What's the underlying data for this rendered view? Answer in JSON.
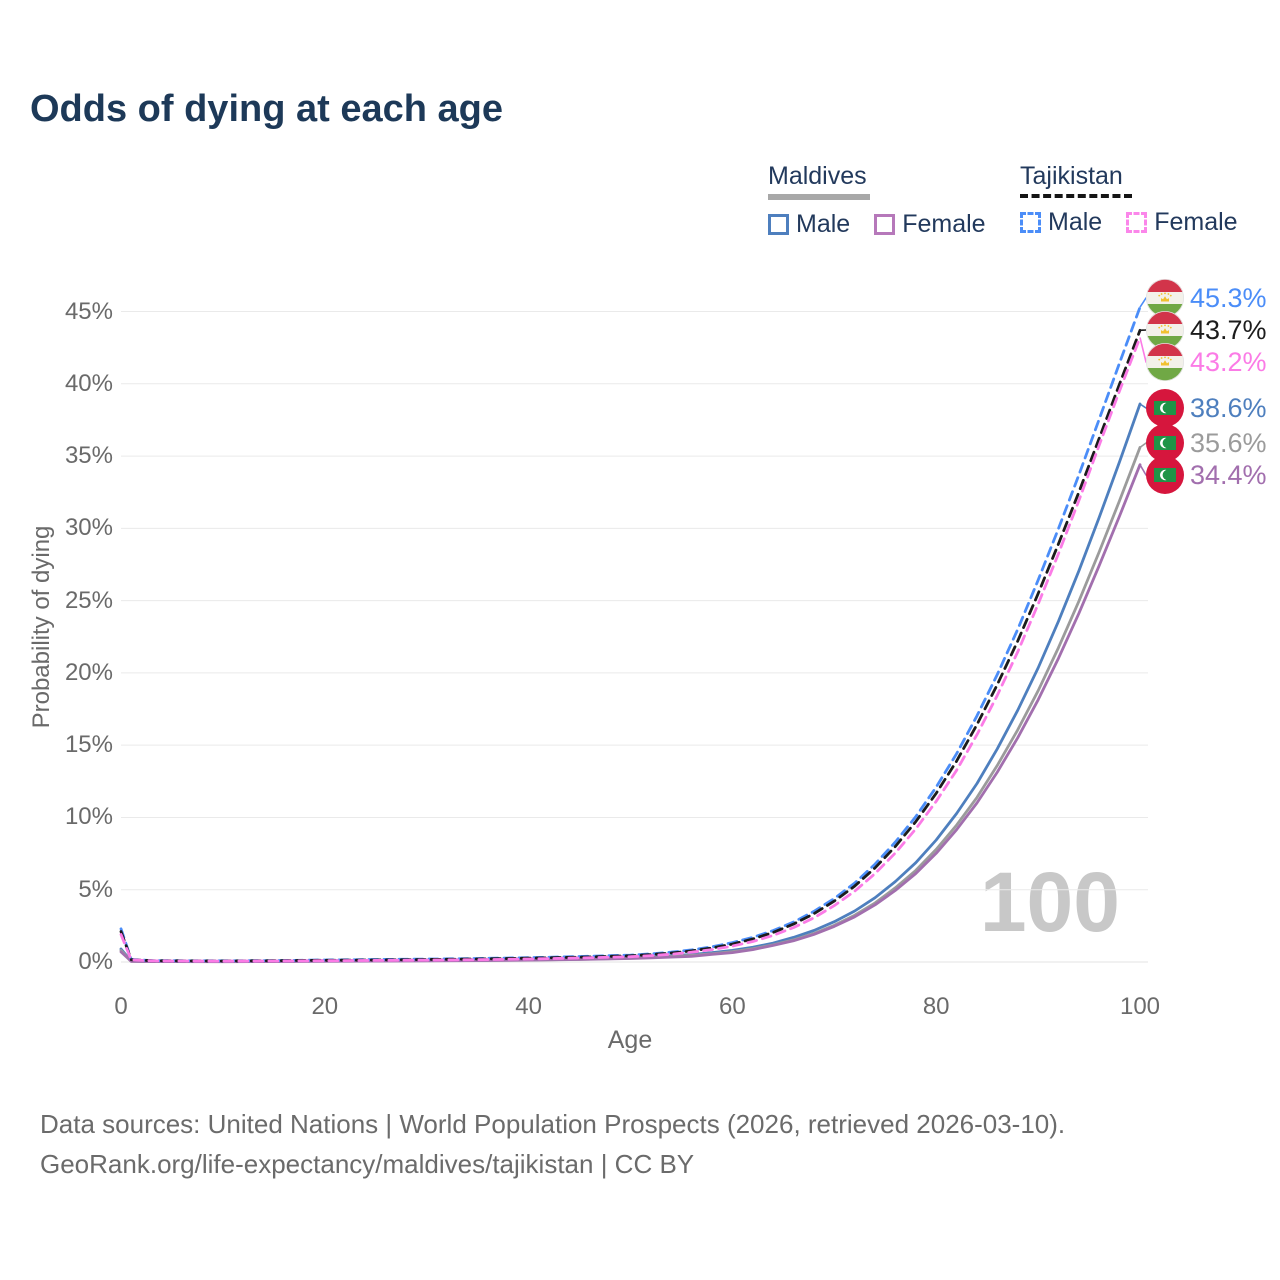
{
  "title": "Odds of dying at each age",
  "legend": {
    "groups": [
      {
        "name": "Maldives",
        "style": "solid",
        "underline_color": "#a8a8a8",
        "items": [
          {
            "label": "Male",
            "color": "#4e7fbe"
          },
          {
            "label": "Female",
            "color": "#b678ba"
          }
        ]
      },
      {
        "name": "Tajikistan",
        "style": "dashed",
        "underline_color": "#151515",
        "items": [
          {
            "label": "Male",
            "color": "#4b8df8"
          },
          {
            "label": "Female",
            "color": "#fb86ea"
          }
        ]
      }
    ]
  },
  "axes": {
    "x_label": "Age",
    "y_label": "Probability of dying",
    "x_ticks": [
      "0",
      "20",
      "40",
      "60",
      "80",
      "100"
    ],
    "y_ticks": [
      "0%",
      "5%",
      "10%",
      "15%",
      "20%",
      "25%",
      "30%",
      "35%",
      "40%",
      "45%"
    ]
  },
  "watermark": "100",
  "footer": {
    "line1": "Data sources: United Nations | World Population Prospects (2026, retrieved 2026-03-10).",
    "line2": "GeoRank.org/life-expectancy/maldives/tajikistan | CC BY"
  },
  "chart_data": {
    "type": "line",
    "title": "Odds of dying at each age",
    "xlabel": "Age",
    "ylabel": "Probability of dying",
    "x_range": [
      0,
      100
    ],
    "y_range_percent": [
      0,
      45
    ],
    "grid": "horizontal",
    "legend_position": "top-right",
    "ages": [
      0,
      1,
      3,
      5,
      10,
      15,
      20,
      25,
      30,
      35,
      40,
      45,
      50,
      52,
      54,
      56,
      58,
      60,
      62,
      64,
      66,
      68,
      70,
      72,
      74,
      76,
      78,
      80,
      82,
      84,
      86,
      88,
      90,
      92,
      94,
      96,
      98,
      100
    ],
    "series": [
      {
        "name": "Tajikistan Male",
        "country": "Tajikistan",
        "sex": "Male",
        "color": "#4b8df8",
        "dashed": true,
        "end_label": "45.3%",
        "end_value_percent": 45.3,
        "values": [
          2.3,
          0.18,
          0.1,
          0.09,
          0.08,
          0.1,
          0.14,
          0.17,
          0.2,
          0.24,
          0.3,
          0.38,
          0.48,
          0.56,
          0.68,
          0.84,
          1.05,
          1.34,
          1.7,
          2.17,
          2.76,
          3.5,
          4.39,
          5.46,
          6.77,
          8.3,
          10.06,
          12.1,
          14.41,
          17.03,
          19.89,
          23.01,
          26.41,
          29.99,
          33.7,
          37.55,
          41.45,
          45.3
        ]
      },
      {
        "name": "Tajikistan Both sexes",
        "country": "Tajikistan",
        "sex": "Both",
        "color": "#1c1c1c",
        "dashed": true,
        "end_label": "43.7%",
        "end_value_percent": 43.7,
        "values": [
          2.1,
          0.16,
          0.09,
          0.08,
          0.07,
          0.09,
          0.12,
          0.14,
          0.17,
          0.21,
          0.26,
          0.33,
          0.43,
          0.51,
          0.62,
          0.77,
          0.97,
          1.24,
          1.59,
          2.05,
          2.62,
          3.34,
          4.21,
          5.25,
          6.52,
          8.0,
          9.71,
          11.67,
          13.9,
          16.43,
          19.19,
          22.2,
          25.48,
          28.93,
          32.51,
          36.23,
          39.99,
          43.7
        ]
      },
      {
        "name": "Tajikistan Female",
        "country": "Tajikistan",
        "sex": "Female",
        "color": "#fb7be6",
        "dashed": true,
        "end_label": "43.2%",
        "end_value_percent": 43.2,
        "values": [
          1.9,
          0.15,
          0.08,
          0.07,
          0.06,
          0.07,
          0.09,
          0.11,
          0.13,
          0.16,
          0.21,
          0.28,
          0.37,
          0.44,
          0.54,
          0.68,
          0.86,
          1.1,
          1.42,
          1.84,
          2.38,
          3.06,
          3.9,
          4.9,
          6.12,
          7.55,
          9.21,
          11.12,
          13.26,
          15.73,
          18.45,
          21.45,
          24.75,
          28.25,
          31.93,
          35.75,
          39.52,
          43.2
        ]
      },
      {
        "name": "Maldives Male",
        "country": "Maldives",
        "sex": "Male",
        "color": "#4e7fbe",
        "dashed": false,
        "end_label": "38.6%",
        "end_value_percent": 38.6,
        "values": [
          0.9,
          0.06,
          0.04,
          0.03,
          0.03,
          0.05,
          0.08,
          0.09,
          0.11,
          0.13,
          0.17,
          0.22,
          0.3,
          0.35,
          0.43,
          0.52,
          0.64,
          0.8,
          1.02,
          1.31,
          1.7,
          2.18,
          2.79,
          3.53,
          4.45,
          5.57,
          6.87,
          8.44,
          10.27,
          12.35,
          14.75,
          17.41,
          20.34,
          23.58,
          27.06,
          30.76,
          34.62,
          38.6
        ]
      },
      {
        "name": "Maldives Both sexes",
        "country": "Maldives",
        "sex": "Both",
        "color": "#9b9b9b",
        "dashed": false,
        "end_label": "35.6%",
        "end_value_percent": 35.6,
        "values": [
          0.8,
          0.05,
          0.04,
          0.03,
          0.03,
          0.04,
          0.06,
          0.07,
          0.09,
          0.11,
          0.14,
          0.19,
          0.26,
          0.31,
          0.38,
          0.46,
          0.57,
          0.72,
          0.92,
          1.18,
          1.53,
          1.97,
          2.54,
          3.24,
          4.09,
          5.13,
          6.34,
          7.79,
          9.47,
          11.39,
          13.6,
          16.06,
          18.76,
          21.75,
          24.96,
          28.37,
          31.93,
          35.6
        ]
      },
      {
        "name": "Maldives Female",
        "country": "Maldives",
        "sex": "Female",
        "color": "#a26fae",
        "dashed": false,
        "end_label": "34.4%",
        "end_value_percent": 34.4,
        "values": [
          0.7,
          0.05,
          0.03,
          0.03,
          0.02,
          0.03,
          0.05,
          0.06,
          0.08,
          0.1,
          0.13,
          0.17,
          0.24,
          0.29,
          0.34,
          0.39,
          0.53,
          0.65,
          0.86,
          1.15,
          1.47,
          1.91,
          2.46,
          3.13,
          3.96,
          4.95,
          6.12,
          7.52,
          9.15,
          11.01,
          13.14,
          15.51,
          18.13,
          21.02,
          24.12,
          27.42,
          30.86,
          34.4
        ]
      }
    ]
  }
}
